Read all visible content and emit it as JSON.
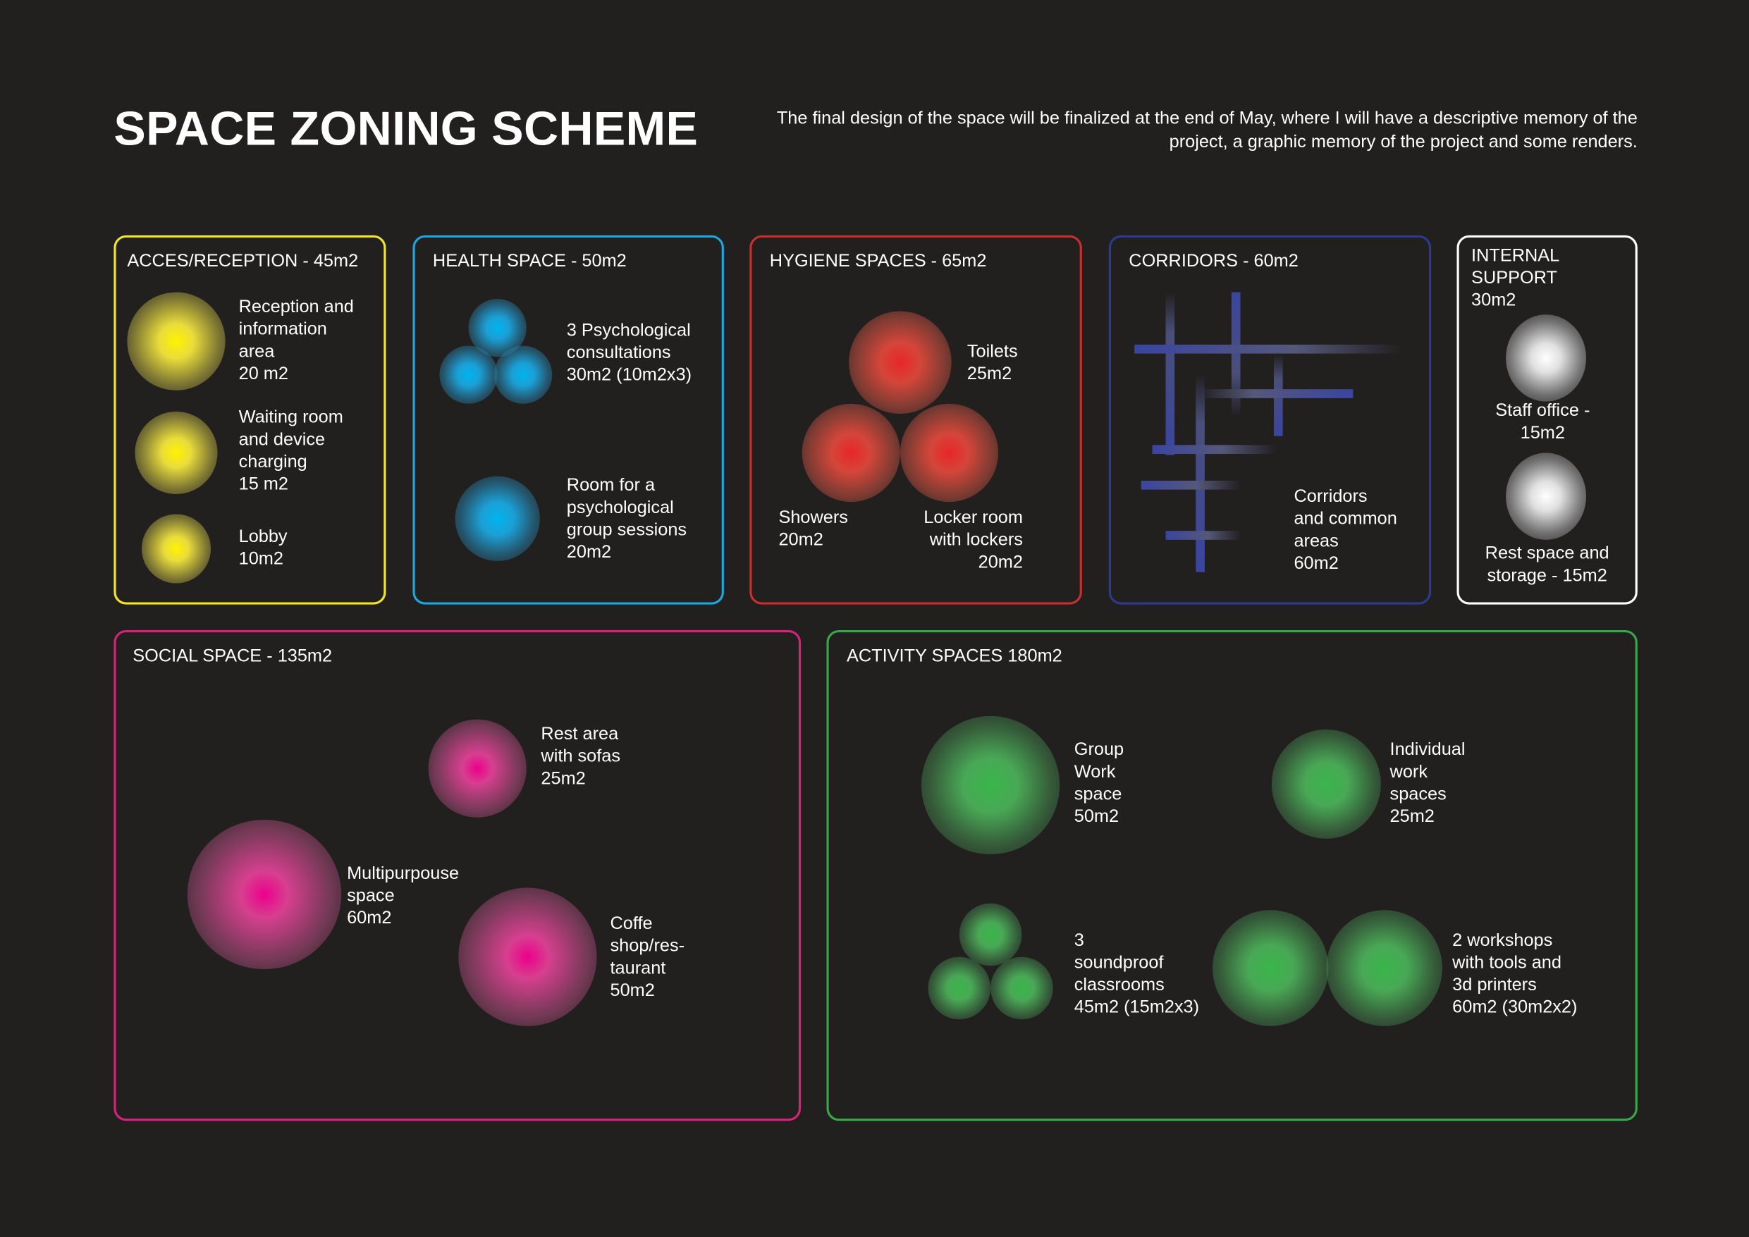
{
  "header": {
    "title": "SPACE ZONING SCHEME",
    "description": "The final design of the space will be finalized at the end of May, where I will have a descriptive memory of the project, a graphic memory of the project and some renders."
  },
  "zones": {
    "reception": {
      "title": "ACCES/RECEPTION - 45m2",
      "color": "#f2e52b",
      "items": [
        "Reception and\ninformation\narea\n20 m2",
        "Waiting room\nand device\ncharging\n15 m2",
        "Lobby\n10m2"
      ]
    },
    "health": {
      "title": "HEALTH SPACE - 50m2",
      "color": "#1ea7df",
      "items": [
        "3 Psychological\nconsultations\n30m2 (10m2x3)",
        "Room for a\npsychological\ngroup sessions\n20m2"
      ]
    },
    "hygiene": {
      "title": "HYGIENE SPACES - 65m2",
      "color": "#c8302f",
      "items": [
        "Toilets\n25m2",
        "Showers\n20m2",
        "Locker room\nwith lockers\n20m2"
      ]
    },
    "corridors": {
      "title": "CORRIDORS - 60m2",
      "color": "#2f3a8f",
      "items": [
        "Corridors\nand common\nareas\n60m2"
      ]
    },
    "internal": {
      "title": "INTERNAL\nSUPPORT\n30m2",
      "color": "#ffffff",
      "items": [
        "Staff office -\n15m2",
        "Rest space and\nstorage - 15m2"
      ]
    },
    "social": {
      "title": "SOCIAL SPACE  - 135m2",
      "color": "#d4237a",
      "items": [
        "Rest area\nwith sofas\n25m2",
        "Multipurpouse\nspace\n60m2",
        "Coffe\nshop/res-\ntaurant\n50m2"
      ]
    },
    "activity": {
      "title": "ACTIVITY SPACES  180m2",
      "color": "#3aa64a",
      "items": [
        "Group\nWork\nspace\n50m2",
        "Individual\nwork\nspaces\n25m2",
        "3\nsoundproof\nclassrooms\n45m2 (15m2x3)",
        "2 workshops\nwith tools and\n3d printers\n60m2 (30m2x2)"
      ]
    }
  }
}
